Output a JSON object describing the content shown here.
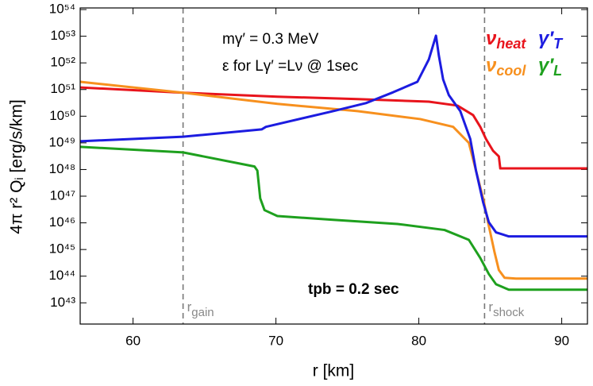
{
  "chart_data": {
    "type": "line",
    "x_label": "r [km]",
    "y_label": "4π r² Qᵢ [erg/s/km]",
    "log_y": true,
    "xlim": [
      56.3,
      91.8
    ],
    "ylim": [
      1.6e+42,
      1.15e+54
    ],
    "xticks": [
      60,
      70,
      80,
      90
    ],
    "yticks": [
      {
        "value": 1e+43,
        "label": "10⁴³"
      },
      {
        "value": 1e+44,
        "label": "10⁴⁴"
      },
      {
        "value": 1e+45,
        "label": "10⁴⁵"
      },
      {
        "value": 1e+46,
        "label": "10⁴⁶"
      },
      {
        "value": 1e+47,
        "label": "10⁴⁷"
      },
      {
        "value": 1e+48,
        "label": "10⁴⁸"
      },
      {
        "value": 1e+49,
        "label": "10⁴⁹"
      },
      {
        "value": 1e+50,
        "label": "10⁵⁰"
      },
      {
        "value": 1e+51,
        "label": "10⁵¹"
      },
      {
        "value": 1e+52,
        "label": "10⁵²"
      },
      {
        "value": 1e+53,
        "label": "10⁵³"
      },
      {
        "value": 1e+54,
        "label": "10⁵⁴"
      }
    ],
    "annotations": [
      "mγ′ = 0.3 MeV",
      "ε  for  Lγ′ =Lν @ 1sec",
      "tpb = 0.2 sec"
    ],
    "markers": [
      {
        "x": 63.5,
        "label": "rgain"
      },
      {
        "x": 84.6,
        "label": "rshock"
      }
    ],
    "series": [
      {
        "name": "νheat",
        "color": "#e8141c",
        "x": [
          56.3,
          63.5,
          70.1,
          75.7,
          80.7,
          82.7,
          83.8,
          84.3,
          84.7,
          85.2,
          85.6,
          85.7,
          91.8
        ],
        "values": [
          1.2e+51,
          7.6e+50,
          5.4e+50,
          4.4e+50,
          3.5e+50,
          2.5e+50,
          1.1e+50,
          4e+49,
          1.4e+49,
          5e+48,
          3.1e+48,
          1.1e+48,
          1.1e+48
        ]
      },
      {
        "name": "νcool",
        "color": "#f7901e",
        "x": [
          56.3,
          63.5,
          70.1,
          75.7,
          80.1,
          82.4,
          83.5,
          84.0,
          84.5,
          84.9,
          85.3,
          85.6,
          86.0,
          86.8,
          91.8
        ],
        "values": [
          1.95e+51,
          7.6e+50,
          2.9e+50,
          1.55e+50,
          7.8e+49,
          4e+49,
          1e+49,
          9.1e+47,
          8.3e+46,
          7.6e+45,
          7.8e+44,
          1.7e+44,
          8.7e+43,
          8.1e+43,
          8.1e+43
        ]
      },
      {
        "name": "γ′T",
        "color": "#1c1ce0",
        "x": [
          56.3,
          63.5,
          69.0,
          69.3,
          74.0,
          76.3,
          78.2,
          79.9,
          80.7,
          81.2,
          81.4,
          81.7,
          82.1,
          82.9,
          83.6,
          84.0,
          84.5,
          84.9,
          85.4,
          86.3,
          91.8
        ],
        "values": [
          1.15e+49,
          1.7e+49,
          3.2e+49,
          4e+49,
          1.55e+50,
          3.1e+50,
          7.9e+50,
          1.95e+51,
          1.35e+52,
          1.05e+53,
          1.9e+52,
          2.4e+51,
          6.2e+50,
          1.55e+50,
          1.4e+49,
          9.1e+47,
          5.9e+46,
          1.05e+46,
          4.4e+45,
          3.1e+45,
          3.1e+45
        ]
      },
      {
        "name": "γ′L",
        "color": "#1ea01e",
        "x": [
          56.3,
          63.5,
          68.5,
          68.7,
          68.9,
          69.2,
          70.1,
          74.0,
          78.5,
          81.8,
          83.5,
          84.3,
          84.9,
          85.4,
          86.3,
          91.8
        ],
        "values": [
          7.1e+48,
          4.4e+48,
          1.3e+48,
          9.1e+47,
          8.3e+46,
          3e+46,
          1.8e+46,
          1.3e+46,
          9.1e+45,
          5.4e+45,
          2.3e+45,
          4.8e+44,
          1.2e+44,
          5e+43,
          3.1e+43,
          3.1e+43
        ]
      }
    ]
  }
}
